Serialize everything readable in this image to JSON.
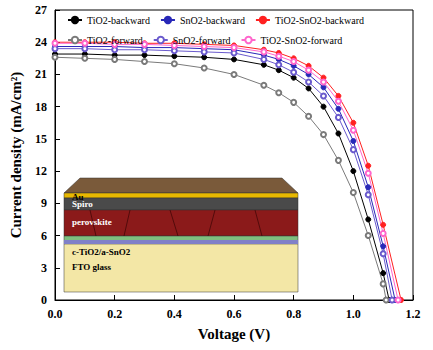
{
  "chart_data": {
    "type": "line",
    "x_label": "Voltage (V)",
    "y_label": "Current density (mA/cm²)",
    "xlim": [
      0,
      1.2
    ],
    "xticks": [
      {
        "value": 0,
        "label": "0.0"
      },
      {
        "value": 0.2,
        "label": "0.2"
      },
      {
        "value": 0.4,
        "label": "0.4"
      },
      {
        "value": 0.6,
        "label": "0.6"
      },
      {
        "value": 0.8,
        "label": "0.8"
      },
      {
        "value": 1.0,
        "label": "1.0"
      },
      {
        "value": 1.2,
        "label": "1.2"
      }
    ],
    "ylim": [
      0,
      27
    ],
    "yticks": [
      0,
      3,
      6,
      9,
      12,
      15,
      18,
      21,
      24,
      27
    ],
    "grid": false,
    "legend": "top",
    "annotations": [
      "Au",
      "Spiro",
      "perovskite",
      "c-TiO2/a-SnO2",
      "FTO glass"
    ],
    "series": [
      {
        "name": "TiO2-backward",
        "color": "#000000",
        "marker": "circle",
        "line_style": "solid",
        "x": [
          0,
          0.1,
          0.2,
          0.3,
          0.4,
          0.5,
          0.6,
          0.7,
          0.75,
          0.8,
          0.85,
          0.9,
          0.95,
          1.0,
          1.05,
          1.1,
          1.12
        ],
        "values": [
          22.9,
          22.9,
          22.8,
          22.8,
          22.7,
          22.6,
          22.4,
          21.9,
          21.4,
          20.7,
          19.7,
          18.0,
          15.5,
          12.0,
          7.5,
          2.5,
          0
        ]
      },
      {
        "name": "SnO2-backward",
        "color": "#2828b8",
        "marker": "circle",
        "line_style": "solid",
        "x": [
          0,
          0.1,
          0.2,
          0.3,
          0.4,
          0.5,
          0.6,
          0.7,
          0.75,
          0.8,
          0.85,
          0.9,
          0.95,
          1.0,
          1.05,
          1.1,
          1.14
        ],
        "values": [
          23.6,
          23.6,
          23.6,
          23.5,
          23.5,
          23.4,
          23.3,
          22.8,
          22.4,
          21.8,
          21.0,
          19.8,
          17.8,
          14.8,
          10.5,
          5.0,
          0
        ]
      },
      {
        "name": "TiO2-SnO2-backward",
        "color": "#ff2020",
        "marker": "circle",
        "line_style": "solid",
        "x": [
          0,
          0.1,
          0.2,
          0.3,
          0.4,
          0.5,
          0.6,
          0.7,
          0.75,
          0.8,
          0.85,
          0.9,
          0.95,
          1.0,
          1.05,
          1.1,
          1.16
        ],
        "values": [
          24.0,
          24.0,
          24.0,
          23.9,
          23.9,
          23.8,
          23.7,
          23.3,
          23.0,
          22.5,
          21.8,
          20.7,
          19.0,
          16.5,
          12.5,
          7.0,
          0
        ]
      },
      {
        "name": "TiO2-forward",
        "color": "#7a7a7a",
        "marker": "open_circle",
        "line_style": "solid",
        "x": [
          0,
          0.1,
          0.2,
          0.3,
          0.4,
          0.5,
          0.6,
          0.7,
          0.75,
          0.8,
          0.85,
          0.9,
          0.95,
          1.0,
          1.05,
          1.1,
          1.11
        ],
        "values": [
          22.6,
          22.5,
          22.4,
          22.2,
          22.0,
          21.6,
          21.0,
          20.0,
          19.3,
          18.4,
          17.1,
          15.4,
          13.0,
          10.0,
          6.0,
          1.5,
          0
        ]
      },
      {
        "name": "SnO2-forward",
        "color": "#6a5acd",
        "marker": "open_circle",
        "line_style": "solid",
        "x": [
          0,
          0.1,
          0.2,
          0.3,
          0.4,
          0.5,
          0.6,
          0.7,
          0.75,
          0.8,
          0.85,
          0.9,
          0.95,
          1.0,
          1.05,
          1.1,
          1.13
        ],
        "values": [
          23.4,
          23.4,
          23.3,
          23.3,
          23.2,
          23.1,
          23.0,
          22.4,
          21.9,
          21.2,
          20.3,
          19.0,
          17.0,
          14.0,
          9.8,
          4.3,
          0
        ]
      },
      {
        "name": "TiO2-SnO2-forward",
        "color": "#ff66cc",
        "marker": "open_circle",
        "line_style": "solid",
        "x": [
          0,
          0.1,
          0.2,
          0.3,
          0.4,
          0.5,
          0.6,
          0.7,
          0.75,
          0.8,
          0.85,
          0.9,
          0.95,
          1.0,
          1.05,
          1.1,
          1.15
        ],
        "values": [
          23.9,
          23.9,
          23.8,
          23.8,
          23.7,
          23.6,
          23.5,
          23.1,
          22.7,
          22.2,
          21.4,
          20.3,
          18.5,
          15.8,
          11.8,
          6.2,
          0
        ]
      }
    ]
  }
}
